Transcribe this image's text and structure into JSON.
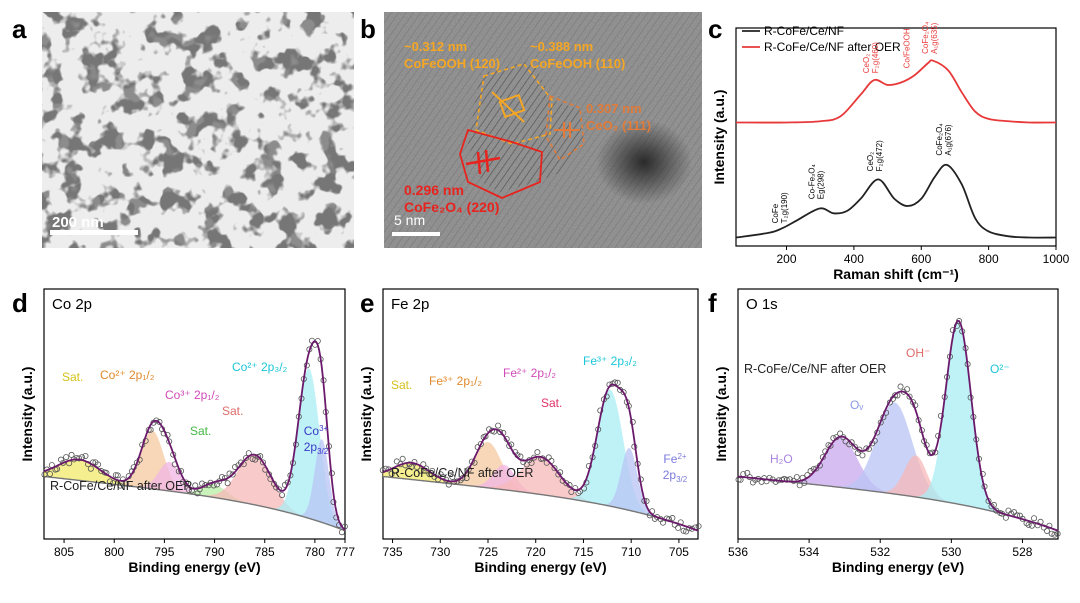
{
  "panels": {
    "a": {
      "label": "a",
      "scale_bar": "200 nm"
    },
    "b": {
      "label": "b",
      "scale_bar": "5 nm",
      "ann1": {
        "line1": "~0.312 nm",
        "line2": "CoFeOOH (120)",
        "color": "#f5a623"
      },
      "ann2": {
        "line1": "~0.388 nm",
        "line2": "CoFeOOH (110)",
        "color": "#f5a623"
      },
      "ann3": {
        "line1": "0.307 nm",
        "line2": "CeO₂ (111)",
        "color": "#e07b39"
      },
      "ann4": {
        "line1": "0.296 nm",
        "line2": "CoFe₂O₄ (220)",
        "color": "#e8231e"
      }
    },
    "c": {
      "label": "c"
    },
    "d": {
      "label": "d"
    },
    "e": {
      "label": "e"
    },
    "f": {
      "label": "f"
    }
  },
  "chart_data": [
    {
      "id": "c",
      "type": "line",
      "xlabel": "Raman shift (cm⁻¹)",
      "ylabel": "Intensity (a.u.)",
      "xlim": [
        50,
        1000
      ],
      "xticks": [
        200,
        400,
        600,
        800,
        1000
      ],
      "legend": [
        "R-CoFe/Ce/NF",
        "R-CoFe/Ce/NF after OER"
      ],
      "legend_placement": "top-left",
      "series": [
        {
          "name": "R-CoFe/Ce/NF",
          "color": "#222222",
          "x": [
            50,
            150,
            190,
            230,
            298,
            340,
            380,
            420,
            472,
            520,
            560,
            600,
            640,
            676,
            720,
            760,
            800,
            860,
            920,
            1000
          ],
          "y": [
            0.02,
            0.06,
            0.1,
            0.16,
            0.26,
            0.22,
            0.24,
            0.34,
            0.5,
            0.34,
            0.28,
            0.34,
            0.52,
            0.62,
            0.46,
            0.18,
            0.07,
            0.03,
            0.02,
            0.02
          ]
        },
        {
          "name": "R-CoFe/Ce/NF after OER",
          "color": "#e8393a",
          "x": [
            50,
            200,
            300,
            360,
            420,
            460,
            500,
            540,
            580,
            620,
            635,
            680,
            720,
            760,
            800,
            860,
            920,
            1000
          ],
          "y": [
            0.97,
            0.97,
            0.98,
            1.02,
            1.2,
            1.32,
            1.28,
            1.3,
            1.36,
            1.46,
            1.48,
            1.4,
            1.22,
            1.06,
            1.0,
            0.98,
            0.97,
            0.97
          ]
        }
      ],
      "annotations": [
        {
          "line1": "CoFe",
          "line2": "T₂g(190)",
          "x": 190,
          "y": 0.12,
          "color": "#000000"
        },
        {
          "line1": "Co-Fe₃O₄",
          "line2": "Eg(298)",
          "x": 298,
          "y": 0.32,
          "color": "#000000"
        },
        {
          "line1": "CeO₂",
          "line2": "F₂g(472)",
          "x": 472,
          "y": 0.55,
          "color": "#000000"
        },
        {
          "line1": "CoFe₂O₄",
          "line2": "A₁g(676)",
          "x": 676,
          "y": 0.68,
          "color": "#000000"
        },
        {
          "line1": "CeO₂",
          "line2": "F₂g(460)",
          "x": 460,
          "y": 1.36,
          "color": "#e8393a"
        },
        {
          "line1": "Co/FeOOH",
          "line2": "",
          "x": 580,
          "y": 1.4,
          "color": "#e8393a"
        },
        {
          "line1": "CoFe₂O₄",
          "line2": "A₁g(635)",
          "x": 635,
          "y": 1.52,
          "color": "#e8393a"
        }
      ]
    },
    {
      "id": "d",
      "type": "line",
      "title": "Co 2p",
      "xlabel": "Binding energy  (eV)",
      "ylabel": "Intensity  (a.u.)",
      "xlim": [
        807,
        777
      ],
      "xticks": [
        805,
        800,
        795,
        790,
        785,
        780,
        777
      ],
      "sample_label": "R-CoFe/Ce/NF after OER",
      "peaks": [
        {
          "name": "Sat.",
          "center": 803.5,
          "height": 0.1,
          "width": 3.0,
          "color": "#f2ea6a",
          "text_color": "#d4c21a"
        },
        {
          "name": "Co²⁺ 2p₁/₂",
          "center": 796.2,
          "height": 0.28,
          "width": 1.6,
          "color": "#f5c9a0",
          "text_color": "#e0892c"
        },
        {
          "name": "Co³⁺ 2p₁/₂",
          "center": 794.5,
          "height": 0.14,
          "width": 1.5,
          "color": "#f2b6e4",
          "text_color": "#d04ab8"
        },
        {
          "name": "Sat.",
          "center": 790.0,
          "height": 0.06,
          "width": 1.8,
          "color": "#b8efa4",
          "text_color": "#44b844"
        },
        {
          "name": "Sat.",
          "center": 786.0,
          "height": 0.24,
          "width": 2.4,
          "color": "#f7b8b8",
          "text_color": "#e06a6a"
        },
        {
          "name": "Co²⁺ 2p₃/₂",
          "center": 780.6,
          "height": 0.72,
          "width": 1.5,
          "color": "#a8eef4",
          "text_color": "#1cc6d8"
        },
        {
          "name": "Co³⁺ 2p₃/₂",
          "center": 779.3,
          "height": 0.4,
          "width": 1.0,
          "color": "#b8c4f4",
          "text_color": "#3a38c8"
        }
      ]
    },
    {
      "id": "e",
      "type": "line",
      "title": "Fe 2p",
      "xlabel": "Binding energy  (eV)",
      "ylabel": "Intensity  (a.u.)",
      "xlim": [
        736,
        703
      ],
      "xticks": [
        735,
        730,
        725,
        720,
        715,
        710,
        705
      ],
      "sample_label": "R-CoFe/Ce/NF after OER",
      "peaks": [
        {
          "name": "Sat.",
          "center": 733.0,
          "height": 0.08,
          "width": 2.6,
          "color": "#f2ea6a",
          "text_color": "#d4c21a"
        },
        {
          "name": "Fe³⁺ 2p₁/₂",
          "center": 725.0,
          "height": 0.22,
          "width": 2.0,
          "color": "#f5c9a0",
          "text_color": "#e0892c"
        },
        {
          "name": "Fe²⁺ 2p₁/₂",
          "center": 723.3,
          "height": 0.12,
          "width": 1.6,
          "color": "#f2b6e4",
          "text_color": "#d04ab8"
        },
        {
          "name": "Sat.",
          "center": 719.5,
          "height": 0.18,
          "width": 2.8,
          "color": "#f7b8b8",
          "text_color": "#e0326a"
        },
        {
          "name": "Fe³⁺ 2p₃/₂",
          "center": 712.2,
          "height": 0.56,
          "width": 1.9,
          "color": "#a8eef4",
          "text_color": "#1cc6d8"
        },
        {
          "name": "Fe²⁺ 2p₃/₂",
          "center": 710.2,
          "height": 0.3,
          "width": 1.2,
          "color": "#b8c4f4",
          "text_color": "#7a7adc"
        }
      ]
    },
    {
      "id": "f",
      "type": "line",
      "title": "O 1s",
      "xlabel": "Binding energy  (eV)",
      "ylabel": "Intensity  (a.u.)",
      "xlim": [
        536,
        527
      ],
      "xticks": [
        536,
        534,
        532,
        530,
        528
      ],
      "sample_label": "R-CoFe/Ce/NF after OER",
      "peaks": [
        {
          "name": "H₂O",
          "center": 533.1,
          "height": 0.24,
          "width": 0.65,
          "color": "#c8a8ee",
          "text_color": "#a884e0"
        },
        {
          "name": "Oᵥ",
          "center": 531.6,
          "height": 0.44,
          "width": 0.7,
          "color": "#b8c4f4",
          "text_color": "#8a9ae8"
        },
        {
          "name": "OH⁻",
          "center": 531.0,
          "height": 0.2,
          "width": 0.45,
          "color": "#f7b8b8",
          "text_color": "#e06a6a"
        },
        {
          "name": "O²⁻",
          "center": 529.8,
          "height": 0.88,
          "width": 0.5,
          "color": "#a8eef4",
          "text_color": "#1cc6d8"
        }
      ]
    }
  ]
}
